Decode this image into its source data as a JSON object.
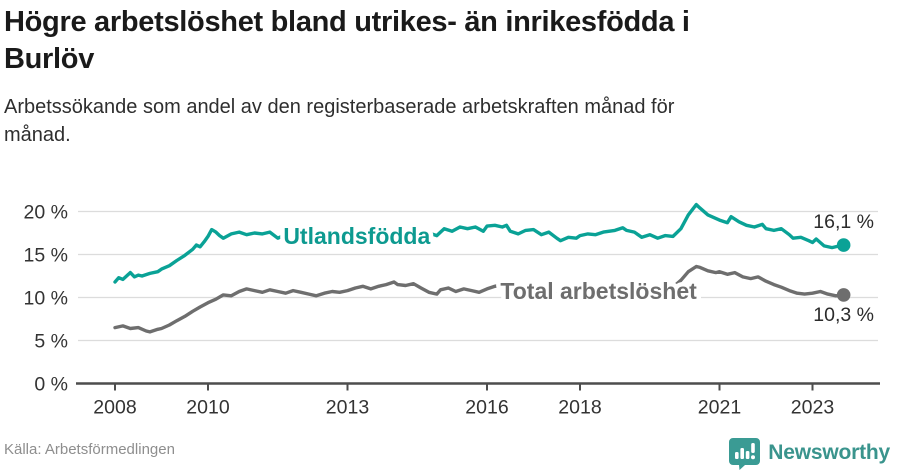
{
  "header": {
    "title": "Högre arbetslöshet bland utrikes- än inrikesfödda i Burlöv",
    "title_lines": [
      "Högre arbetslöshet bland utrikes- än inrikesfödda i",
      "Burlöv"
    ],
    "subtitle": "Arbetssökande som andel av den registerbaserade arbetskraften månad för månad.",
    "subtitle_lines": [
      "Arbetssökande som andel av den registerbaserade arbetskraften månad för",
      "månad."
    ]
  },
  "chart_data": {
    "type": "line",
    "title": "Högre arbetslöshet bland utrikes- än inrikesfödda i Burlöv",
    "subtitle": "Arbetssökande som andel av den registerbaserade arbetskraften månad för månad.",
    "unit": "%",
    "grid": true,
    "legend": "inline-labels",
    "x_axis": {
      "ticks": [
        2008,
        2010,
        2013,
        2016,
        2018,
        2021,
        2023
      ],
      "range": [
        2007.2,
        2024.4
      ]
    },
    "y_axis": {
      "tick_labels": [
        "0 %",
        "5 %",
        "10 %",
        "15 %",
        "20 %"
      ],
      "tick_values": [
        0,
        5,
        10,
        15,
        20
      ],
      "range": [
        0,
        22
      ]
    },
    "series": [
      {
        "name": "Utlandsfödda",
        "color": "#0aa296",
        "label_color": "#0d9a90",
        "end_value": 16.1,
        "end_label": "16,1 %",
        "label_anchor": [
          2013.2,
          16.2
        ],
        "points": [
          [
            2008.0,
            11.8
          ],
          [
            2008.08,
            12.3
          ],
          [
            2008.17,
            12.1
          ],
          [
            2008.25,
            12.5
          ],
          [
            2008.33,
            12.9
          ],
          [
            2008.42,
            12.4
          ],
          [
            2008.5,
            12.6
          ],
          [
            2008.58,
            12.5
          ],
          [
            2008.75,
            12.8
          ],
          [
            2008.92,
            13.0
          ],
          [
            2009.0,
            13.3
          ],
          [
            2009.17,
            13.7
          ],
          [
            2009.33,
            14.3
          ],
          [
            2009.5,
            14.9
          ],
          [
            2009.67,
            15.6
          ],
          [
            2009.75,
            16.1
          ],
          [
            2009.83,
            15.9
          ],
          [
            2009.92,
            16.5
          ],
          [
            2010.0,
            17.1
          ],
          [
            2010.08,
            17.9
          ],
          [
            2010.17,
            17.6
          ],
          [
            2010.25,
            17.2
          ],
          [
            2010.33,
            16.9
          ],
          [
            2010.5,
            17.4
          ],
          [
            2010.67,
            17.6
          ],
          [
            2010.83,
            17.3
          ],
          [
            2011.0,
            17.5
          ],
          [
            2011.17,
            17.4
          ],
          [
            2011.33,
            17.6
          ],
          [
            2011.5,
            16.9
          ],
          [
            2011.67,
            17.3
          ],
          [
            2011.83,
            17.2
          ],
          [
            2012.0,
            17.4
          ],
          [
            2012.25,
            17.1
          ],
          [
            2012.5,
            17.3
          ],
          [
            2012.75,
            17.0
          ],
          [
            2013.0,
            17.2
          ],
          [
            2013.25,
            17.5
          ],
          [
            2013.5,
            17.3
          ],
          [
            2013.75,
            17.6
          ],
          [
            2014.0,
            17.4
          ],
          [
            2014.25,
            17.7
          ],
          [
            2014.5,
            17.4
          ],
          [
            2014.75,
            17.5
          ],
          [
            2014.92,
            17.2
          ],
          [
            2015.0,
            17.6
          ],
          [
            2015.08,
            18.0
          ],
          [
            2015.25,
            17.7
          ],
          [
            2015.42,
            18.2
          ],
          [
            2015.58,
            18.0
          ],
          [
            2015.75,
            18.2
          ],
          [
            2015.92,
            17.7
          ],
          [
            2016.0,
            18.3
          ],
          [
            2016.17,
            18.4
          ],
          [
            2016.33,
            18.2
          ],
          [
            2016.42,
            18.4
          ],
          [
            2016.5,
            17.7
          ],
          [
            2016.67,
            17.4
          ],
          [
            2016.83,
            17.8
          ],
          [
            2017.0,
            17.9
          ],
          [
            2017.17,
            17.3
          ],
          [
            2017.33,
            17.6
          ],
          [
            2017.5,
            16.9
          ],
          [
            2017.58,
            16.6
          ],
          [
            2017.75,
            17.0
          ],
          [
            2017.92,
            16.9
          ],
          [
            2018.0,
            17.2
          ],
          [
            2018.17,
            17.4
          ],
          [
            2018.33,
            17.3
          ],
          [
            2018.5,
            17.6
          ],
          [
            2018.75,
            17.8
          ],
          [
            2018.92,
            18.1
          ],
          [
            2019.0,
            17.8
          ],
          [
            2019.17,
            17.6
          ],
          [
            2019.33,
            17.0
          ],
          [
            2019.5,
            17.3
          ],
          [
            2019.67,
            16.9
          ],
          [
            2019.83,
            17.2
          ],
          [
            2020.0,
            17.1
          ],
          [
            2020.17,
            18.0
          ],
          [
            2020.33,
            19.6
          ],
          [
            2020.5,
            20.8
          ],
          [
            2020.58,
            20.4
          ],
          [
            2020.75,
            19.6
          ],
          [
            2020.92,
            19.2
          ],
          [
            2021.0,
            19.0
          ],
          [
            2021.17,
            18.7
          ],
          [
            2021.25,
            19.4
          ],
          [
            2021.42,
            18.8
          ],
          [
            2021.58,
            18.4
          ],
          [
            2021.75,
            18.2
          ],
          [
            2021.92,
            18.5
          ],
          [
            2022.0,
            18.0
          ],
          [
            2022.17,
            17.8
          ],
          [
            2022.33,
            18.0
          ],
          [
            2022.5,
            17.3
          ],
          [
            2022.58,
            16.9
          ],
          [
            2022.75,
            17.0
          ],
          [
            2022.92,
            16.6
          ],
          [
            2023.0,
            16.4
          ],
          [
            2023.08,
            16.8
          ],
          [
            2023.25,
            16.0
          ],
          [
            2023.42,
            15.8
          ],
          [
            2023.58,
            16.0
          ],
          [
            2023.67,
            16.1
          ]
        ]
      },
      {
        "name": "Total arbetslöshet",
        "color": "#6e6e6e",
        "label_color": "#6e6e6e",
        "end_value": 10.3,
        "end_label": "10,3 %",
        "label_anchor": [
          2018.4,
          9.8
        ],
        "points": [
          [
            2008.0,
            6.5
          ],
          [
            2008.17,
            6.7
          ],
          [
            2008.33,
            6.4
          ],
          [
            2008.5,
            6.5
          ],
          [
            2008.67,
            6.1
          ],
          [
            2008.75,
            6.0
          ],
          [
            2008.92,
            6.3
          ],
          [
            2009.0,
            6.4
          ],
          [
            2009.17,
            6.8
          ],
          [
            2009.33,
            7.3
          ],
          [
            2009.5,
            7.8
          ],
          [
            2009.67,
            8.4
          ],
          [
            2009.83,
            8.9
          ],
          [
            2010.0,
            9.4
          ],
          [
            2010.17,
            9.8
          ],
          [
            2010.33,
            10.3
          ],
          [
            2010.5,
            10.2
          ],
          [
            2010.67,
            10.7
          ],
          [
            2010.83,
            11.0
          ],
          [
            2011.0,
            10.8
          ],
          [
            2011.17,
            10.6
          ],
          [
            2011.33,
            10.9
          ],
          [
            2011.5,
            10.7
          ],
          [
            2011.67,
            10.5
          ],
          [
            2011.83,
            10.8
          ],
          [
            2012.0,
            10.6
          ],
          [
            2012.17,
            10.4
          ],
          [
            2012.33,
            10.2
          ],
          [
            2012.5,
            10.5
          ],
          [
            2012.67,
            10.7
          ],
          [
            2012.83,
            10.6
          ],
          [
            2013.0,
            10.8
          ],
          [
            2013.17,
            11.1
          ],
          [
            2013.33,
            11.3
          ],
          [
            2013.5,
            11.0
          ],
          [
            2013.67,
            11.3
          ],
          [
            2013.83,
            11.5
          ],
          [
            2014.0,
            11.8
          ],
          [
            2014.08,
            11.5
          ],
          [
            2014.25,
            11.4
          ],
          [
            2014.42,
            11.6
          ],
          [
            2014.58,
            11.1
          ],
          [
            2014.75,
            10.6
          ],
          [
            2014.92,
            10.4
          ],
          [
            2015.0,
            10.9
          ],
          [
            2015.17,
            11.1
          ],
          [
            2015.33,
            10.7
          ],
          [
            2015.5,
            11.0
          ],
          [
            2015.67,
            10.8
          ],
          [
            2015.83,
            10.6
          ],
          [
            2016.0,
            11.0
          ],
          [
            2016.17,
            11.3
          ],
          [
            2016.33,
            11.5
          ],
          [
            2016.42,
            11.3
          ],
          [
            2016.58,
            11.2
          ],
          [
            2016.75,
            11.0
          ],
          [
            2016.92,
            10.8
          ],
          [
            2017.0,
            10.9
          ],
          [
            2017.25,
            10.6
          ],
          [
            2017.5,
            10.4
          ],
          [
            2017.75,
            10.6
          ],
          [
            2018.0,
            10.8
          ],
          [
            2018.25,
            10.9
          ],
          [
            2018.5,
            11.0
          ],
          [
            2018.75,
            11.2
          ],
          [
            2019.0,
            11.0
          ],
          [
            2019.25,
            10.8
          ],
          [
            2019.5,
            10.9
          ],
          [
            2019.75,
            11.0
          ],
          [
            2020.0,
            11.2
          ],
          [
            2020.17,
            12.0
          ],
          [
            2020.33,
            13.0
          ],
          [
            2020.5,
            13.6
          ],
          [
            2020.58,
            13.5
          ],
          [
            2020.75,
            13.1
          ],
          [
            2020.92,
            12.9
          ],
          [
            2021.0,
            13.0
          ],
          [
            2021.17,
            12.7
          ],
          [
            2021.33,
            12.9
          ],
          [
            2021.5,
            12.4
          ],
          [
            2021.67,
            12.2
          ],
          [
            2021.83,
            12.4
          ],
          [
            2022.0,
            11.9
          ],
          [
            2022.17,
            11.5
          ],
          [
            2022.33,
            11.2
          ],
          [
            2022.5,
            10.8
          ],
          [
            2022.67,
            10.5
          ],
          [
            2022.83,
            10.4
          ],
          [
            2023.0,
            10.5
          ],
          [
            2023.17,
            10.7
          ],
          [
            2023.33,
            10.4
          ],
          [
            2023.5,
            10.2
          ],
          [
            2023.67,
            10.3
          ]
        ]
      }
    ]
  },
  "footer": {
    "source": "Källa: Arbetsförmedlingen",
    "brand": "Newsworthy",
    "brand_icon": "newsworthy-chart-bubble-icon"
  },
  "colors": {
    "accent_teal": "#0aa296",
    "line_gray": "#6e6e6e",
    "gridline": "#dcdcdc",
    "axis": "#4d4d4d",
    "axis_text": "#333333",
    "value_label_text": "#2b2b2b",
    "title_text": "#1a1a1a",
    "source_text": "#8e8e8e",
    "brand_teal": "#3a948d"
  }
}
